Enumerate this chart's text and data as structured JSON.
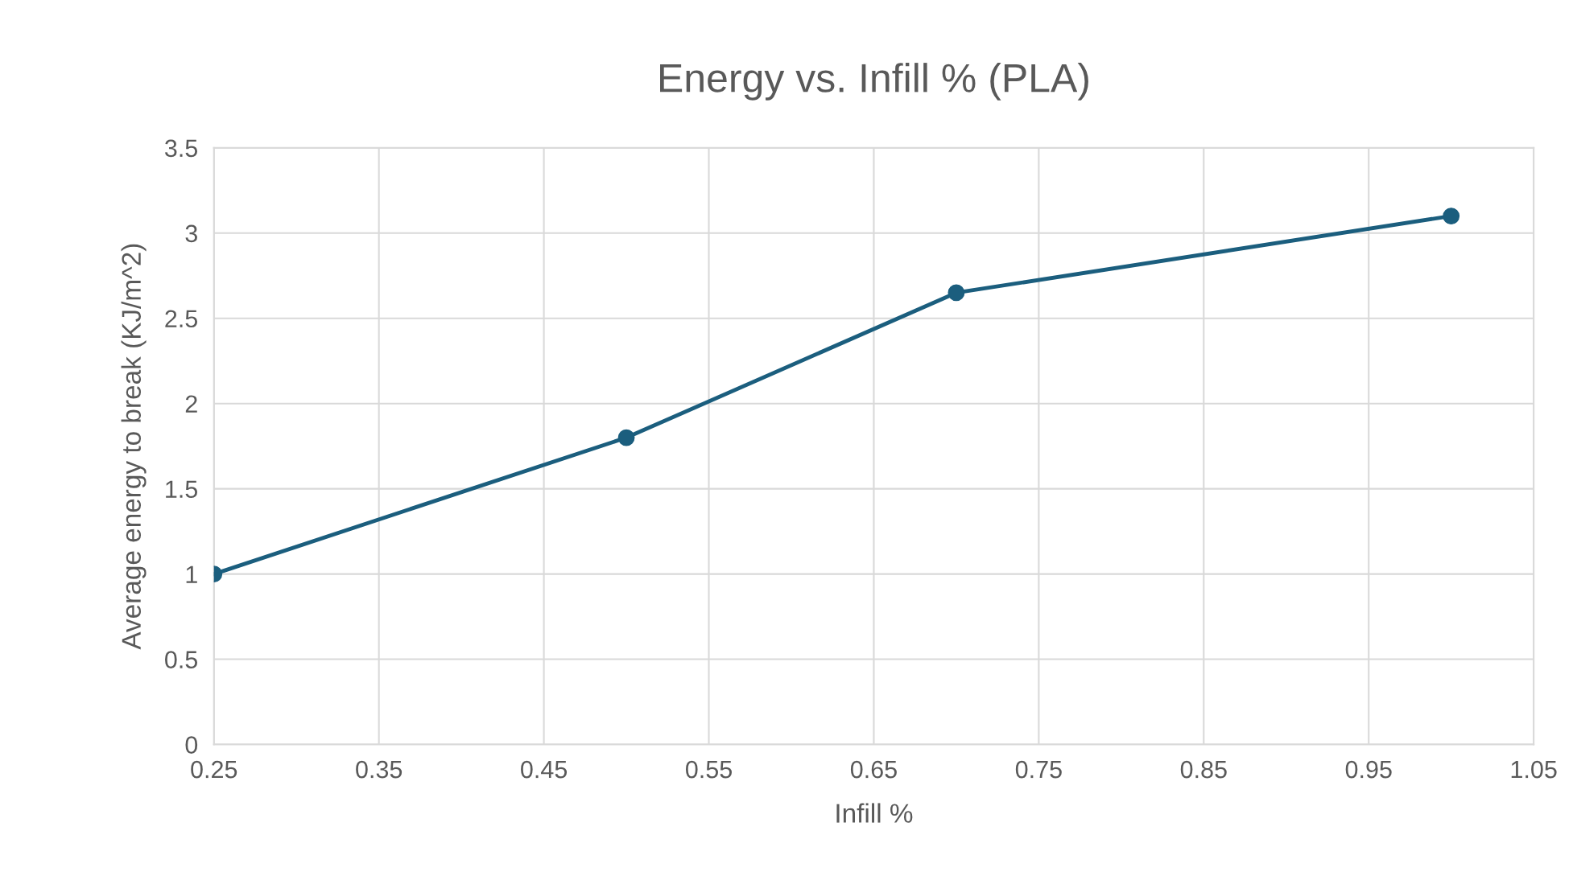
{
  "chart_data": {
    "type": "line",
    "title": "Energy vs. Infill % (PLA)",
    "xlabel": "Infill %",
    "ylabel": "Average energy to break (KJ/m^2)",
    "x": [
      0.25,
      0.5,
      0.7,
      1.0
    ],
    "series": [
      {
        "color": "#1b5e7e",
        "values": [
          1.0,
          1.8,
          2.65,
          3.1
        ]
      }
    ],
    "xlim": [
      0.25,
      1.05
    ],
    "xticks": [
      0.25,
      0.35,
      0.45,
      0.55,
      0.65,
      0.75,
      0.85,
      0.95,
      1.05
    ],
    "ylim": [
      0,
      3.5
    ],
    "yticks": [
      0,
      0.5,
      1,
      1.5,
      2,
      2.5,
      3,
      3.5
    ],
    "grid": true,
    "marker": "circle",
    "line_style": "solid",
    "legend": false
  }
}
